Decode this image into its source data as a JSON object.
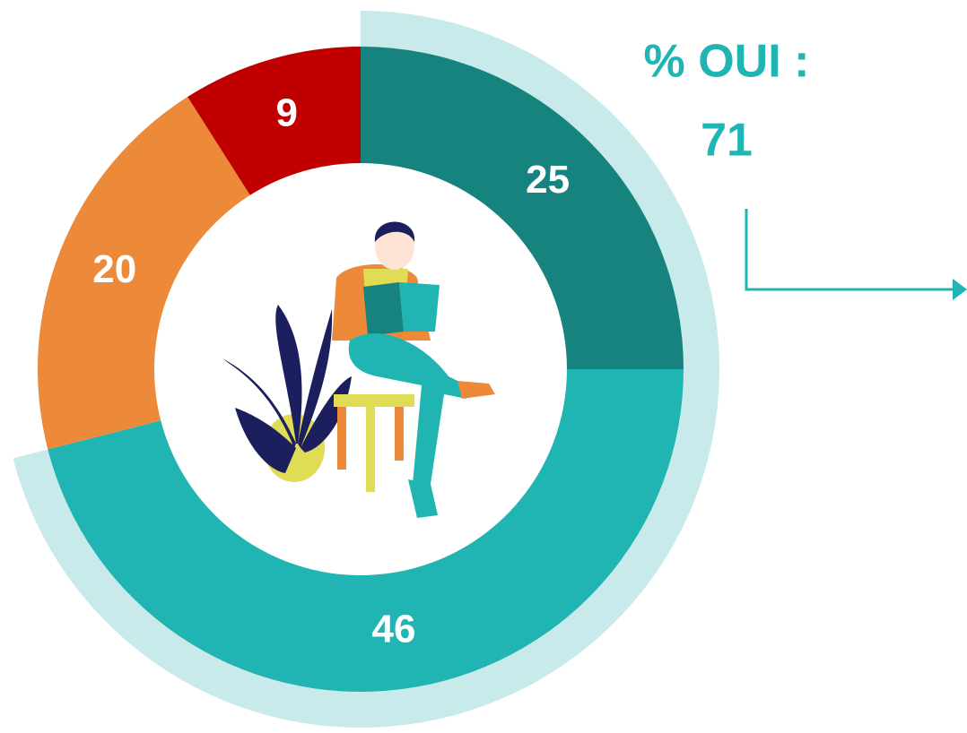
{
  "chart_data": {
    "type": "donut",
    "values": [
      25,
      46,
      20,
      9
    ],
    "colors": [
      "#17837f",
      "#20b5b3",
      "#ec8a3a",
      "#c00000"
    ],
    "highlight": {
      "label": "% OUI :",
      "value": 71,
      "color": "#c8eaea",
      "text_color": "#20b5b3"
    }
  }
}
